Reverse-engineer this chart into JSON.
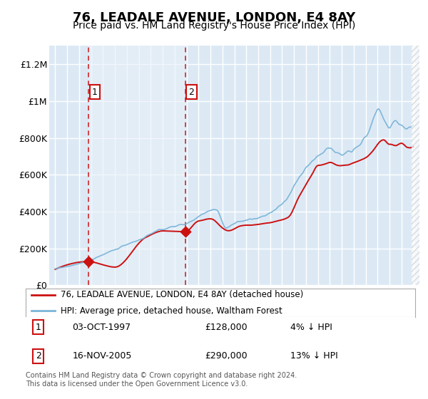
{
  "title": "76, LEADALE AVENUE, LONDON, E4 8AY",
  "subtitle": "Price paid vs. HM Land Registry's House Price Index (HPI)",
  "legend_line1": "76, LEADALE AVENUE, LONDON, E4 8AY (detached house)",
  "legend_line2": "HPI: Average price, detached house, Waltham Forest",
  "footer": "Contains HM Land Registry data © Crown copyright and database right 2024.\nThis data is licensed under the Open Government Licence v3.0.",
  "transaction1_date": "03-OCT-1997",
  "transaction1_price": "£128,000",
  "transaction1_hpi": "4% ↓ HPI",
  "transaction1_year": 1997.78,
  "transaction1_value": 128000,
  "transaction2_date": "16-NOV-2005",
  "transaction2_price": "£290,000",
  "transaction2_hpi": "13% ↓ HPI",
  "transaction2_year": 2005.88,
  "transaction2_value": 290000,
  "ylim": [
    0,
    1300000
  ],
  "xlim_start": 1994.5,
  "xlim_end": 2025.5,
  "hpi_color": "#7ab4d8",
  "price_color": "#cc1111",
  "background_color": "#dce9f5",
  "plot_bg_color": "#dce9f5",
  "grid_color": "#c8d8e8",
  "title_fontsize": 13,
  "subtitle_fontsize": 10,
  "ytick_labels": [
    "£0",
    "£200K",
    "£400K",
    "£600K",
    "£800K",
    "£1M",
    "£1.2M"
  ],
  "ytick_values": [
    0,
    200000,
    400000,
    600000,
    800000,
    1000000,
    1200000
  ]
}
